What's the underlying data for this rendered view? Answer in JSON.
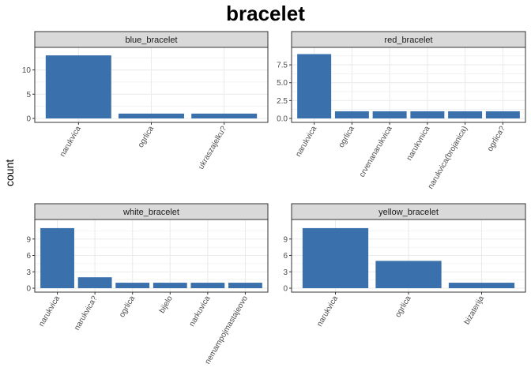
{
  "title": "bracelet",
  "ylabel": "count",
  "colors": {
    "bar": "#3A70AC",
    "strip_bg": "#D9D9D9",
    "grid": "#EBEBEB",
    "border": "#333333"
  },
  "chart_data": [
    {
      "type": "bar",
      "facet": "blue_bracelet",
      "categories": [
        "narukvica",
        "ogrlica",
        "ukraszajelku?"
      ],
      "values": [
        13,
        1,
        1
      ],
      "ylim": [
        0,
        14
      ],
      "yticks": [
        0,
        5,
        10
      ],
      "ytick_labels": [
        "0",
        "5",
        "10"
      ],
      "grid": true
    },
    {
      "type": "bar",
      "facet": "red_bracelet",
      "categories": [
        "narukvica",
        "ogrlica",
        "crvenanarukvica",
        "narukvnica",
        "narukvica(brojanica)",
        "ogrlica?"
      ],
      "values": [
        9,
        1,
        1,
        1,
        1,
        1
      ],
      "ylim": [
        0,
        9.5
      ],
      "yticks": [
        0,
        2.5,
        5,
        7.5
      ],
      "ytick_labels": [
        "0.0",
        "2.5",
        "5.0",
        "7.5"
      ],
      "grid": true
    },
    {
      "type": "bar",
      "facet": "white_bracelet",
      "categories": [
        "narukvica",
        "narukvica?",
        "ogrlica",
        "bijelo",
        "narkuvica",
        "nemampojmastajeovo"
      ],
      "values": [
        11,
        2,
        1,
        1,
        1,
        1
      ],
      "ylim": [
        0,
        12
      ],
      "yticks": [
        0,
        3,
        6,
        9
      ],
      "ytick_labels": [
        "0",
        "3",
        "6",
        "9"
      ],
      "grid": true
    },
    {
      "type": "bar",
      "facet": "yellow_bracelet",
      "categories": [
        "narukvica",
        "ogrlica",
        "bizaterija"
      ],
      "values": [
        11,
        5,
        1
      ],
      "ylim": [
        0,
        12
      ],
      "yticks": [
        0,
        3,
        6,
        9
      ],
      "ytick_labels": [
        "0",
        "3",
        "6",
        "9"
      ],
      "grid": true
    }
  ]
}
